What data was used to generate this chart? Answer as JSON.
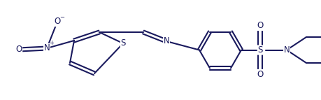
{
  "line_color": "#1a1a5e",
  "bg_color": "#ffffff",
  "line_width": 1.5,
  "figsize": [
    4.6,
    1.43
  ],
  "dpi": 100,
  "font_size": 8.5,
  "xlim": [
    0.0,
    4.6
  ],
  "ylim": [
    0.0,
    1.43
  ]
}
